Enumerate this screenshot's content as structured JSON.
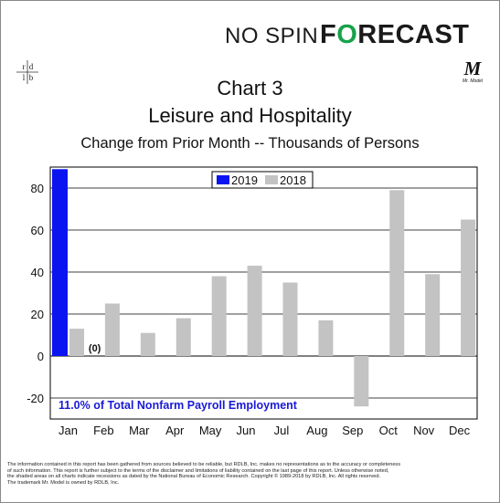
{
  "brand": {
    "nospin": "NO SPIN",
    "forecast_pre": "F",
    "forecast_o": "O",
    "forecast_post": "RECAST",
    "accent": "#17a24a"
  },
  "logos": {
    "rdlb": [
      "r",
      "d",
      "l",
      "b"
    ],
    "mrmodel_letter": "M",
    "mrmodel_caption": "Mr. Model"
  },
  "chart_data": {
    "type": "bar",
    "title": "Chart 3",
    "subtitle": "Leisure and Hospitality",
    "subtitle2": "Change from Prior Month -- Thousands of Persons",
    "categories": [
      "Jan",
      "Feb",
      "Mar",
      "Apr",
      "May",
      "Jun",
      "Jul",
      "Aug",
      "Sep",
      "Oct",
      "Nov",
      "Dec"
    ],
    "series": [
      {
        "name": "2019",
        "color": "#0a14f0",
        "values": [
          89,
          null,
          null,
          null,
          null,
          null,
          null,
          null,
          null,
          null,
          null,
          null
        ]
      },
      {
        "name": "2018",
        "color": "#c3c3c3",
        "values": [
          13,
          25,
          11,
          18,
          38,
          43,
          35,
          17,
          -24,
          79,
          39,
          65
        ]
      }
    ],
    "ylim": [
      -30,
      90
    ],
    "yticks": [
      -20,
      0,
      20,
      40,
      60,
      80
    ],
    "grid": true,
    "legend": "top-center",
    "data_label": {
      "text": "(0)",
      "category": "Feb"
    },
    "annotation": {
      "text": "11.0% of Total Nonfarm Payroll Employment",
      "color": "#1a1ad6"
    }
  },
  "footer": {
    "lines": [
      "The information contained in this report has been gathered from sources believed to be reliable, but RDLB, Inc. makes no representations as to the accuracy or completeness",
      "of such information. This report is further subject to the terms of the disclaimer and limitations of liability contained on the last page of this report.  Unless otherwise noted,",
      "the shaded areas on all charts indicate recessions as dated by the National Bureau of Economic Research. Copyright © 1989-2018 by RDLB, Inc. All rights reserved.",
      "The trademark Mr. Model is owned by RDLB, Inc."
    ]
  }
}
